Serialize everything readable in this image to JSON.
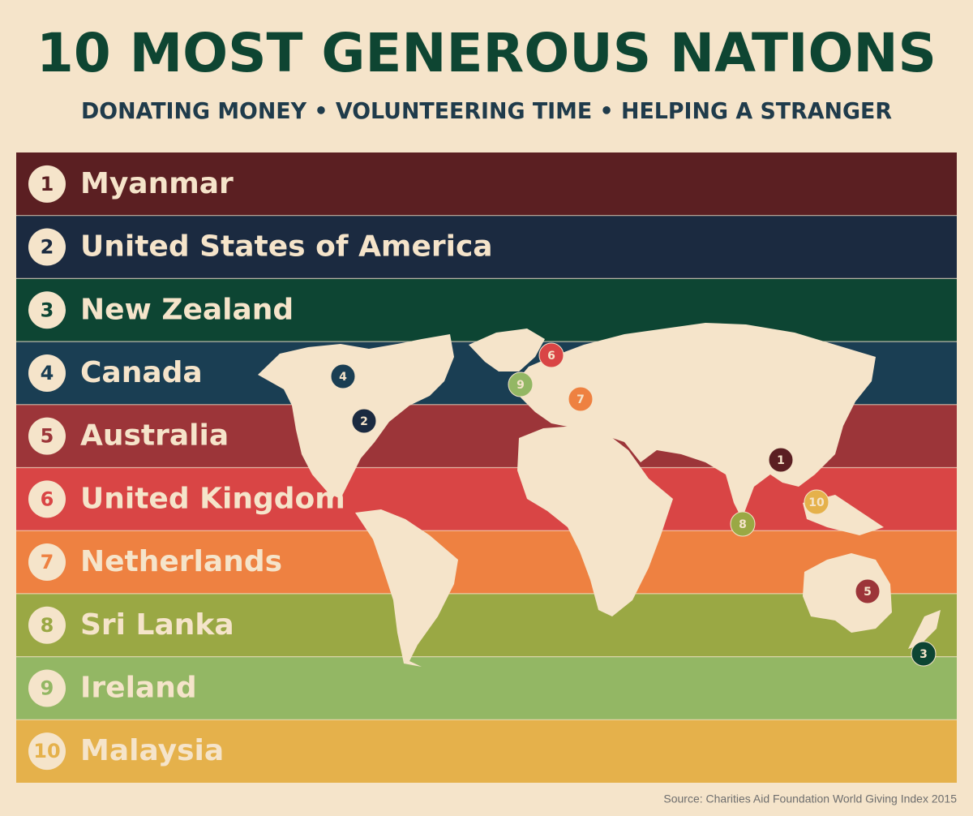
{
  "header": {
    "title": "10 MOST GENEROUS NATIONS",
    "subtitle": "DONATING MONEY • VOLUNTEERING TIME • HELPING A STRANGER"
  },
  "rows": [
    {
      "rank": "1",
      "name": "Myanmar",
      "color": "#5b1f22"
    },
    {
      "rank": "2",
      "name": "United States of America",
      "color": "#1b2a40"
    },
    {
      "rank": "3",
      "name": "New Zealand",
      "color": "#0d4533"
    },
    {
      "rank": "4",
      "name": "Canada",
      "color": "#1a3e53"
    },
    {
      "rank": "5",
      "name": "Australia",
      "color": "#9c3539"
    },
    {
      "rank": "6",
      "name": "United Kingdom",
      "color": "#d94545"
    },
    {
      "rank": "7",
      "name": "Netherlands",
      "color": "#ee8141"
    },
    {
      "rank": "8",
      "name": "Sri Lanka",
      "color": "#9aa844"
    },
    {
      "rank": "9",
      "name": "Ireland",
      "color": "#93b764"
    },
    {
      "rank": "10",
      "name": "Malaysia",
      "color": "#e5b14b"
    }
  ],
  "map": {
    "markers": [
      {
        "label": "1"
      },
      {
        "label": "2"
      },
      {
        "label": "3"
      },
      {
        "label": "4"
      },
      {
        "label": "5"
      },
      {
        "label": "6"
      },
      {
        "label": "7"
      },
      {
        "label": "8"
      },
      {
        "label": "9"
      },
      {
        "label": "10"
      }
    ]
  },
  "footer": {
    "source": "Source: Charities Aid Foundation World Giving Index 2015"
  }
}
